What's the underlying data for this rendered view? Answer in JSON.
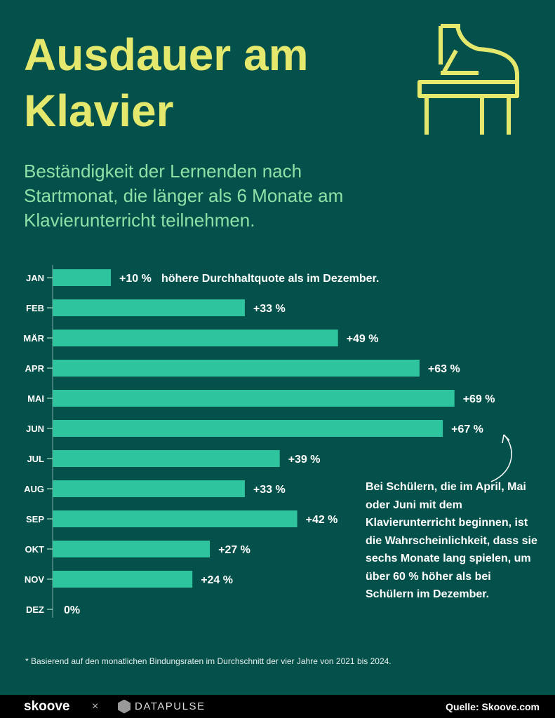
{
  "title": "Ausdauer am Klavier",
  "subtitle": "Beständigkeit der Lernenden nach Startmonat, die länger als 6 Monate am Klavierunterricht teilnehmen.",
  "colors": {
    "background": "#04504b",
    "bar": "#2ec49e",
    "title": "#e4e86c",
    "subtitle": "#8fe0a6"
  },
  "icon": "grand-piano-icon",
  "chart_data": {
    "type": "bar",
    "orientation": "horizontal",
    "categories": [
      "JAN",
      "FEB",
      "MÄR",
      "APR",
      "MAI",
      "JUN",
      "JUL",
      "AUG",
      "SEP",
      "OKT",
      "NOV",
      "DEZ"
    ],
    "values": [
      10,
      33,
      49,
      63,
      69,
      67,
      39,
      33,
      42,
      27,
      24,
      0
    ],
    "data_labels": [
      "+10 %",
      "+33 %",
      "+49 %",
      "+63 %",
      "+69 %",
      "+67 %",
      "+39 %",
      "+33 %",
      "+42 %",
      "+27 %",
      "+24 %",
      "0%"
    ],
    "jan_annotation": "höhere Durchhaltquote als im Dezember.",
    "annotation": "Bei Schülern, die im April, Mai oder Juni mit dem Klavierunterricht beginnen, ist die Wahrscheinlichkeit, dass sie sechs Monate lang spielen, um über 60 % höher als bei Schülern im Dezember.",
    "xlim": [
      0,
      70
    ]
  },
  "footnote": "* Basierend auf den monatlichen Bindungsraten im Durchschnitt der vier Jahre von 2021 bis 2024.",
  "footer": {
    "logo1": "skoove",
    "separator": "×",
    "logo2": "DATAPULSE",
    "source": "Quelle: Skoove.com"
  }
}
